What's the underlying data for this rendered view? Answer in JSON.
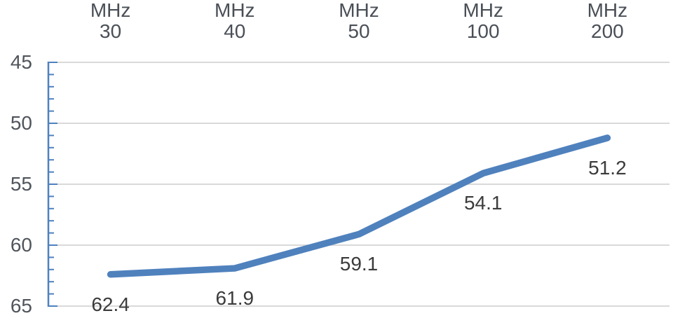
{
  "chart_data": {
    "type": "line",
    "categories": [
      "MHz 30",
      "MHz 40",
      "MHz 50",
      "MHz 100",
      "MHz 200"
    ],
    "series": [
      {
        "name": "",
        "values": [
          62.4,
          61.9,
          59.1,
          54.1,
          51.2
        ],
        "data_labels": [
          "62.4",
          "61.9",
          "59.1",
          "54.1",
          "51.2"
        ]
      }
    ],
    "title": "",
    "xlabel": "",
    "ylabel": "",
    "y_axis": {
      "min": 45,
      "max": 65,
      "major_step": 5,
      "minor_step": 1,
      "inverted": true,
      "tick_labels": [
        "45",
        "50",
        "55",
        "60",
        "65"
      ],
      "tick_values": [
        45,
        50,
        55,
        60,
        65
      ]
    },
    "x_axis_position": "top",
    "data_label_position": "below",
    "legend": "none",
    "grid": "horizontal-major",
    "colors": {
      "series_line": "#4F81BD",
      "axis_line": "#4F81BD",
      "gridline": "#D9D9D9",
      "category_text": "#4a4f57",
      "axis_tick_text": "#50555c",
      "data_label_text": "#3b3b3b"
    }
  }
}
